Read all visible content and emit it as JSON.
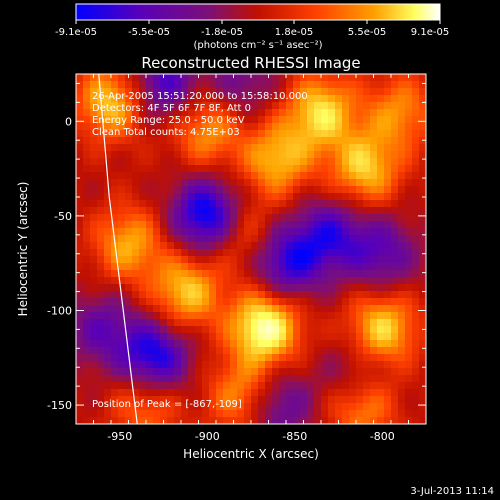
{
  "colorbar": {
    "ticks": [
      "-9.1e-05",
      "-5.5e-05",
      "-1.8e-05",
      "1.8e-05",
      "5.5e-05",
      "9.1e-05"
    ],
    "units_label": "(photons cm⁻² s⁻¹ asec⁻²)"
  },
  "header": {
    "title": "Reconstructed RHESSI Image",
    "line1": "26-Apr-2005 15:51:20.000 to 15:58:10.000",
    "line2": "Detectors: 4F 5F 6F 7F 8F, Att 0",
    "line3": "Energy Range: 25.0 - 50.0 keV",
    "line4": "Clean    Total counts: 4.75E+03"
  },
  "peak_label": "Position of Peak = [-867,-109]",
  "footer_date": "3-Jul-2013 11:14",
  "chart_data": {
    "type": "heatmap",
    "title": "Reconstructed RHESSI Image",
    "xlabel": "Heliocentric X (arcsec)",
    "ylabel": "Heliocentric Y (arcsec)",
    "xlim": [
      -975,
      -775
    ],
    "ylim": [
      -160,
      25
    ],
    "xticks": [
      -950,
      -900,
      -850,
      -800
    ],
    "xtick_labels": [
      "-950",
      "-900",
      "-850",
      "-800"
    ],
    "yticks": [
      0,
      -50,
      -100,
      -150
    ],
    "ytick_labels": [
      "0",
      "-50",
      "-100",
      "-150"
    ],
    "colormap": [
      "#0000ff",
      "#5a00b8",
      "#7a0f7a",
      "#c01000",
      "#ff4000",
      "#ffa000",
      "#ffff60",
      "#ffffff"
    ],
    "value_range": [
      -9.1e-05,
      9.1e-05
    ],
    "peak": [
      -867,
      -109
    ],
    "blobs": [
      {
        "x": -867,
        "y": -109,
        "v": 1.0
      },
      {
        "x": -955,
        "y": 10,
        "v": 0.7
      },
      {
        "x": -912,
        "y": -90,
        "v": 0.7
      },
      {
        "x": -835,
        "y": 5,
        "v": 0.75
      },
      {
        "x": -860,
        "y": -20,
        "v": 0.65
      },
      {
        "x": -810,
        "y": -25,
        "v": 0.7
      },
      {
        "x": -800,
        "y": -110,
        "v": 0.75
      },
      {
        "x": -812,
        "y": -150,
        "v": 0.6
      },
      {
        "x": -945,
        "y": -65,
        "v": 0.6
      },
      {
        "x": -900,
        "y": -5,
        "v": 0.55
      },
      {
        "x": -880,
        "y": -145,
        "v": 0.55
      },
      {
        "x": -935,
        "y": -150,
        "v": 0.45
      },
      {
        "x": -880,
        "y": -60,
        "v": 0.4
      },
      {
        "x": -790,
        "y": 5,
        "v": 0.5
      },
      {
        "x": -900,
        "y": -50,
        "v": -0.9
      },
      {
        "x": -930,
        "y": -125,
        "v": -0.8
      },
      {
        "x": -925,
        "y": 20,
        "v": -0.6
      },
      {
        "x": -855,
        "y": -75,
        "v": -0.7
      },
      {
        "x": -830,
        "y": -60,
        "v": -0.6
      },
      {
        "x": -860,
        "y": -150,
        "v": -0.5
      },
      {
        "x": -800,
        "y": -70,
        "v": -0.5
      },
      {
        "x": -960,
        "y": -110,
        "v": -0.45
      },
      {
        "x": -815,
        "y": -135,
        "v": -0.4
      },
      {
        "x": -880,
        "y": 20,
        "v": -0.35
      }
    ],
    "limb_curve": [
      [
        -962,
        25
      ],
      [
        -956,
        -40
      ],
      [
        -948,
        -100
      ],
      [
        -940,
        -160
      ]
    ]
  }
}
